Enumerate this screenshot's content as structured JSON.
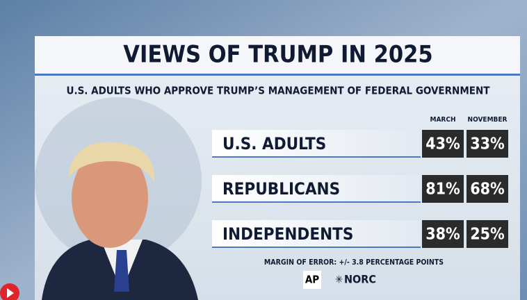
{
  "header": {
    "title": "VIEWS OF TRUMP IN 2025",
    "subtitle": "U.S. ADULTS WHO APPROVE TRUMP’S MANAGEMENT OF FEDERAL GOVERNMENT"
  },
  "table": {
    "columns": [
      "MARCH",
      "NOVEMBER"
    ],
    "rows": [
      [
        "U.S. ADULTS",
        "43%",
        "33%"
      ],
      [
        "REPUBLICANS",
        "81%",
        "68%"
      ],
      [
        "INDEPENDENTS",
        "38%",
        "25%"
      ]
    ]
  },
  "footer": {
    "note": "MARGIN OF ERROR: +/- 3.8 PERCENTAGE POINTS",
    "logos": [
      "AP",
      "NORC"
    ]
  }
}
